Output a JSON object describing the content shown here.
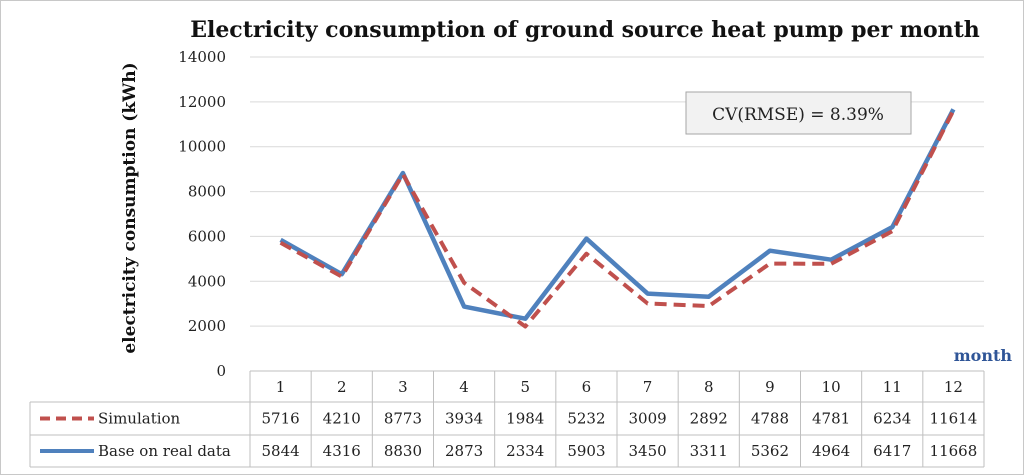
{
  "chart_data": {
    "type": "line",
    "title": "Electricity consumption of ground source heat pump per month",
    "xlabel": "month",
    "ylabel": "electricity consumption (kWh)",
    "ylim": [
      0,
      14000
    ],
    "yticks": [
      "0",
      "2000",
      "4000",
      "6000",
      "8000",
      "10000",
      "12000",
      "14000"
    ],
    "categories": [
      "1",
      "2",
      "3",
      "4",
      "5",
      "6",
      "7",
      "8",
      "9",
      "10",
      "11",
      "12"
    ],
    "series": [
      {
        "name": "Simulation",
        "style": "dashed",
        "color": "#c0504d",
        "values": [
          5716,
          4210,
          8773,
          3934,
          1984,
          5232,
          3009,
          2892,
          4788,
          4781,
          6234,
          11614
        ]
      },
      {
        "name": "Base on real data",
        "style": "solid",
        "color": "#4f81bd",
        "values": [
          5844,
          4316,
          8830,
          2873,
          2334,
          5903,
          3450,
          3311,
          5362,
          4964,
          6417,
          11668
        ]
      }
    ],
    "annotation": "CV(RMSE) = 8.39%",
    "grid": true,
    "legend": "data-table",
    "data_table": true
  }
}
